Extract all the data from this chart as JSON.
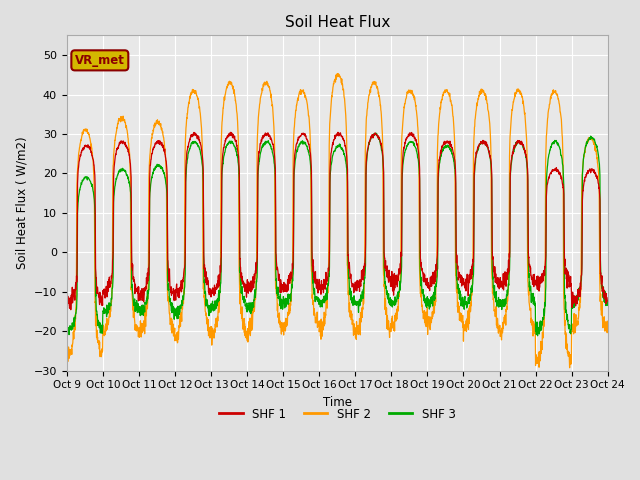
{
  "title": "Soil Heat Flux",
  "ylabel": "Soil Heat Flux ( W/m2)",
  "xlabel": "Time",
  "ylim": [
    -30,
    55
  ],
  "xlim": [
    0,
    360
  ],
  "background_color": "#e0e0e0",
  "plot_bg_color": "#e8e8e8",
  "grid_color": "#ffffff",
  "annotation_text": "VR_met",
  "annotation_box_facecolor": "#d4b800",
  "annotation_box_edgecolor": "#8b0000",
  "annotation_text_color": "#8b0000",
  "tick_labels": [
    "Oct 9",
    "Oct 10",
    "Oct 11",
    "Oct 12",
    "Oct 13",
    "Oct 14",
    "Oct 15",
    "Oct 16",
    "Oct 17",
    "Oct 18",
    "Oct 19",
    "Oct 20",
    "Oct 21",
    "Oct 22",
    "Oct 23",
    "Oct 24"
  ],
  "tick_positions": [
    0,
    24,
    48,
    72,
    96,
    120,
    144,
    168,
    192,
    216,
    240,
    264,
    288,
    312,
    336,
    360
  ],
  "colors": {
    "SHF1": "#cc0000",
    "SHF2": "#ff9900",
    "SHF3": "#00aa00"
  },
  "legend_labels": [
    "SHF 1",
    "SHF 2",
    "SHF 3"
  ],
  "n_days": 15,
  "shf1_peaks": [
    27,
    28,
    28,
    30,
    30,
    30,
    30,
    30,
    30,
    30,
    28,
    28,
    28,
    21,
    21
  ],
  "shf2_peaks": [
    31,
    34,
    33,
    41,
    43,
    43,
    41,
    45,
    43,
    41,
    41,
    41,
    41,
    41,
    29
  ],
  "shf3_peaks": [
    19,
    21,
    22,
    28,
    28,
    28,
    28,
    27,
    30,
    28,
    27,
    28,
    28,
    28,
    29
  ],
  "shf1_troughs": [
    -13,
    -10,
    -11,
    -10,
    -10,
    -9,
    -9,
    -9,
    -8,
    -8,
    -8,
    -8,
    -8,
    -8,
    -12
  ],
  "shf2_troughs": [
    -26,
    -20,
    -20,
    -21,
    -21,
    -20,
    -19,
    -20,
    -20,
    -18,
    -18,
    -19,
    -20,
    -28,
    -20
  ],
  "shf3_troughs": [
    -20,
    -15,
    -15,
    -15,
    -14,
    -14,
    -13,
    -13,
    -13,
    -13,
    -13,
    -13,
    -13,
    -20,
    -13
  ],
  "shf2_deep_start": [
    -26
  ],
  "yticks": [
    -30,
    -20,
    -10,
    0,
    10,
    20,
    30,
    40,
    50
  ]
}
